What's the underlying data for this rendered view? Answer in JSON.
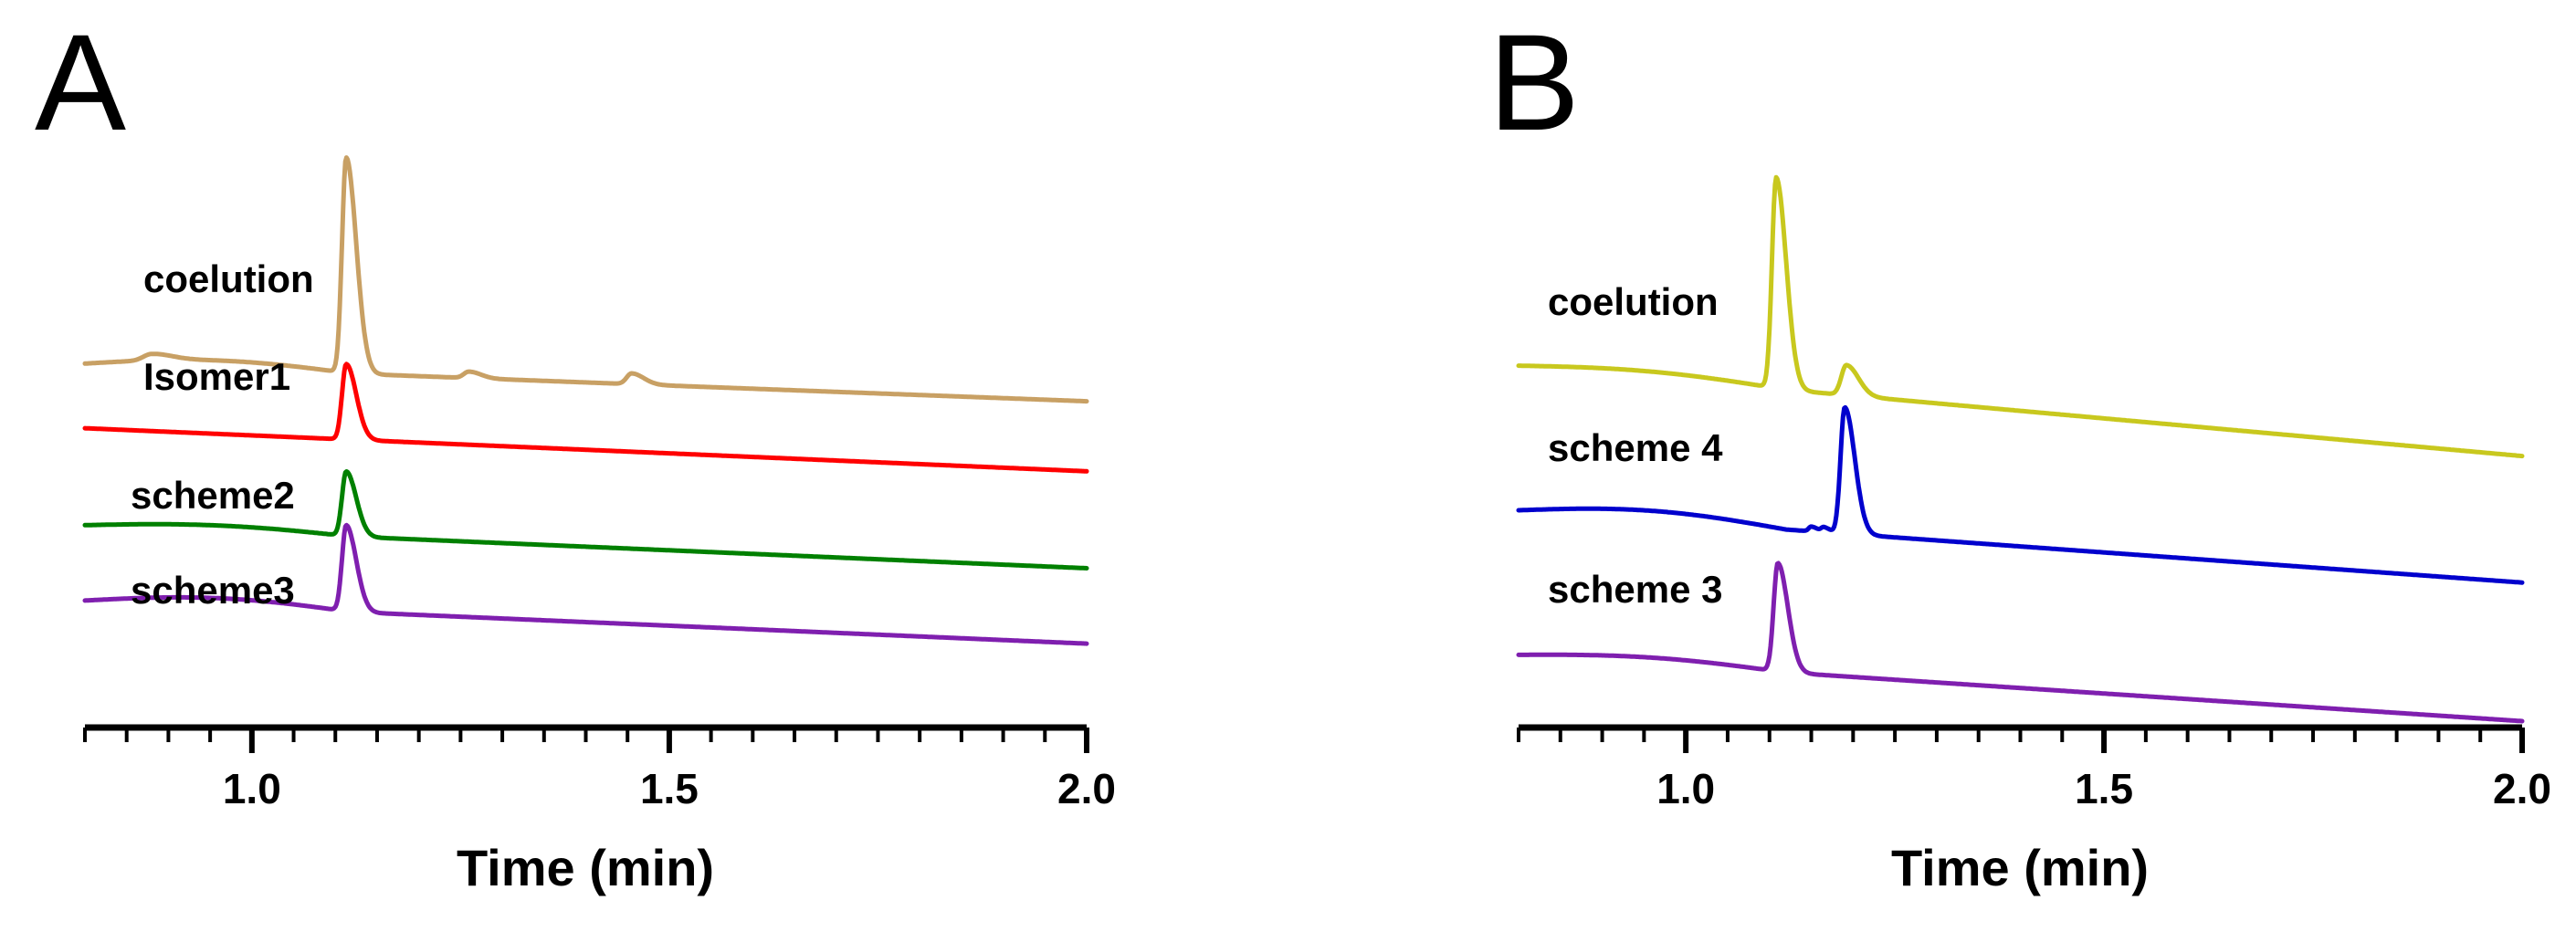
{
  "chart_data": [
    {
      "panel": "A",
      "type": "line",
      "xlabel": "Time (min)",
      "ylabel": "",
      "xlim": [
        0.8,
        2.0
      ],
      "xticks": [
        {
          "value": 1.0,
          "label": "1.0"
        },
        {
          "value": 1.5,
          "label": "1.5"
        },
        {
          "value": 2.0,
          "label": "2.0"
        }
      ],
      "minor_tick_step": 0.05,
      "ylim": [
        0,
        100
      ],
      "series": [
        {
          "name": "coelution",
          "color": "#C8A064",
          "baseline": [
            63,
            56
          ],
          "bulge": 1.5,
          "peaks": [
            {
              "x": 1.113,
              "h": 40,
              "w": 0.005
            },
            {
              "x": 0.88,
              "h": 1.2,
              "w": 0.01
            },
            {
              "x": 1.26,
              "h": 1.2,
              "w": 0.006
            },
            {
              "x": 1.455,
              "h": 2.0,
              "w": 0.006
            }
          ]
        },
        {
          "name": "Isomer1",
          "color": "#FF0000",
          "baseline": [
            51,
            43
          ],
          "bulge": 0,
          "peaks": [
            {
              "x": 1.113,
              "h": 14,
              "w": 0.005
            }
          ]
        },
        {
          "name": "scheme2",
          "color": "#008000",
          "baseline": [
            33,
            25
          ],
          "bulge": 1.0,
          "peaks": [
            {
              "x": 1.113,
              "h": 12,
              "w": 0.005
            }
          ]
        },
        {
          "name": "scheme3",
          "color": "#7F1FAF",
          "baseline": [
            19,
            11
          ],
          "bulge": 1.5,
          "peaks": [
            {
              "x": 1.113,
              "h": 16,
              "w": 0.005
            }
          ]
        }
      ]
    },
    {
      "panel": "B",
      "type": "line",
      "xlabel": "Time (min)",
      "ylabel": "",
      "xlim": [
        0.8,
        2.0
      ],
      "xticks": [
        {
          "value": 1.0,
          "label": "1.0"
        },
        {
          "value": 1.5,
          "label": "1.5"
        },
        {
          "value": 2.0,
          "label": "2.0"
        }
      ],
      "minor_tick_step": 0.05,
      "ylim": [
        0,
        100
      ],
      "series": [
        {
          "name": "coelution",
          "color": "#C8C81E",
          "baseline": [
            59,
            44
          ],
          "bulge": 1.0,
          "peaks": [
            {
              "x": 1.108,
              "h": 35,
              "w": 0.005
            },
            {
              "x": 1.192,
              "h": 5,
              "w": 0.006
            }
          ]
        },
        {
          "name": "scheme 4",
          "color": "#0000CD",
          "baseline": [
            35,
            23
          ],
          "bulge": 1.5,
          "peaks": [
            {
              "x": 1.19,
              "h": 21,
              "w": 0.005
            },
            {
              "x": 1.15,
              "h": 0.8,
              "w": 0.003
            },
            {
              "x": 1.165,
              "h": 0.8,
              "w": 0.003
            }
          ]
        },
        {
          "name": "scheme 3",
          "color": "#7F1FAF",
          "baseline": [
            11,
            0
          ],
          "bulge": 1.0,
          "peaks": [
            {
              "x": 1.11,
              "h": 18,
              "w": 0.005
            }
          ]
        }
      ]
    }
  ]
}
